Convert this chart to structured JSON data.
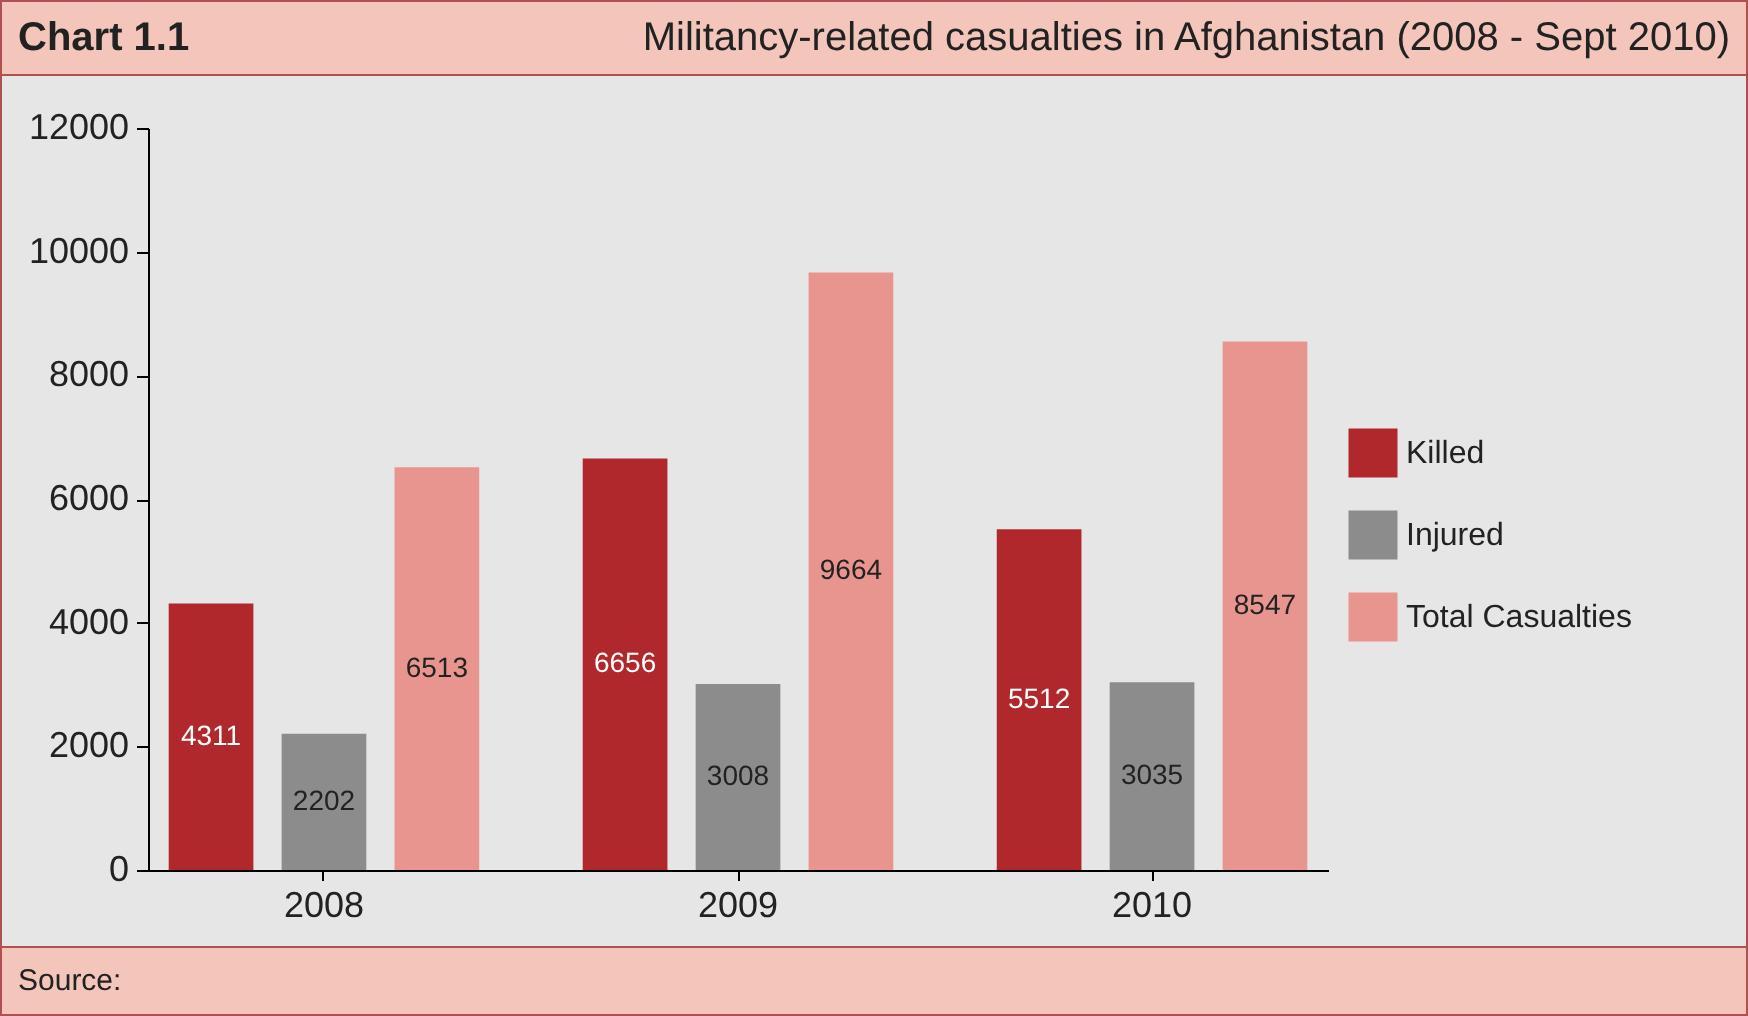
{
  "chart_data": {
    "type": "bar",
    "title": "Chart 1.1",
    "subtitle": "Militancy-related casualties in Afghanistan (2008 - Sept 2010)",
    "categories": [
      "2008",
      "2009",
      "2010"
    ],
    "series": [
      {
        "name": "Killed",
        "color": "#b0282c",
        "values": [
          4311,
          6656,
          5512
        ]
      },
      {
        "name": "Injured",
        "color": "#8c8c8c",
        "values": [
          2202,
          3008,
          3035
        ]
      },
      {
        "name": "Total Casualties",
        "color": "#e89590",
        "values": [
          6513,
          9664,
          8547
        ]
      }
    ],
    "ylim": [
      0,
      12000
    ],
    "yticks": [
      0,
      2000,
      4000,
      6000,
      8000,
      10000,
      12000
    ],
    "data_labels": true,
    "legend": "right",
    "grid": false,
    "annotations": [
      "Source:"
    ]
  }
}
